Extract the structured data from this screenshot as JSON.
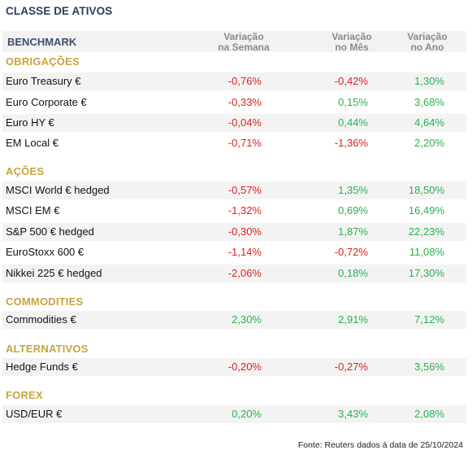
{
  "title": "CLASSE DE ATIVOS",
  "header": {
    "benchmark": "BENCHMARK",
    "col1_line1": "Variação",
    "col1_line2": "na Semana",
    "col2_line1": "Variação",
    "col2_line2": "no Mês",
    "col3_line1": "Variação",
    "col3_line2": "no Ano"
  },
  "sections": {
    "obrigacoes": "OBRIGAÇÕES",
    "acoes": "AÇÕES",
    "commodities": "COMMODITIES",
    "alternativos": "ALTERNATIVOS",
    "forex": "FOREX"
  },
  "rows": [
    {
      "name": "Euro Treasury €",
      "week": "-0,76%",
      "month": "-0,42%",
      "year": "1,30%"
    },
    {
      "name": "Euro Corporate €",
      "week": "-0,33%",
      "month": "0,15%",
      "year": "3,68%"
    },
    {
      "name": "Euro HY €",
      "week": "-0,04%",
      "month": "0,44%",
      "year": "4,64%"
    },
    {
      "name": "EM Local €",
      "week": "-0,71%",
      "month": "-1,36%",
      "year": "2,20%"
    },
    {
      "name": "MSCI World € hedged",
      "week": "-0,57%",
      "month": "1,35%",
      "year": "18,50%"
    },
    {
      "name": "MSCI EM €",
      "week": "-1,32%",
      "month": "0,69%",
      "year": "16,49%"
    },
    {
      "name": "S&P 500 € hedged",
      "week": "-0,30%",
      "month": "1,87%",
      "year": "22,23%"
    },
    {
      "name": "EuroStoxx 600 €",
      "week": "-1,14%",
      "month": "-0,72%",
      "year": "11,08%"
    },
    {
      "name": "Nikkei 225 € hedged",
      "week": "-2,06%",
      "month": "0,18%",
      "year": "17,30%"
    },
    {
      "name": "Commodities €",
      "week": "2,30%",
      "month": "2,91%",
      "year": "7,12%"
    },
    {
      "name": "Hedge Funds €",
      "week": "-0,20%",
      "month": "-0,27%",
      "year": "3,56%"
    },
    {
      "name": "USD/EUR €",
      "week": "0,20%",
      "month": "3,43%",
      "year": "2,08%"
    }
  ],
  "colors": {
    "negative": "#e02020",
    "positive": "#27b34b",
    "section": "#c6a440",
    "title": "#2c3e5c"
  },
  "footer": "Fonte: Reuters dados à data de 25/10/2024"
}
